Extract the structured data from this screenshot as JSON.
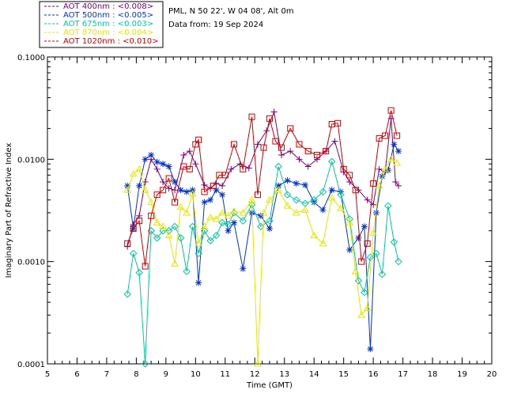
{
  "chart_data": {
    "type": "line",
    "title": "",
    "site": "PML, N 50 22', W 04 08', Alt 0m",
    "date_text": "Data from: 19 Sep 2024",
    "xlabel": "Time (GMT)",
    "ylabel": "Imaginary Part of Refractive Index",
    "xlim": [
      5,
      20
    ],
    "ylim": [
      0.0001,
      0.1
    ],
    "yscale": "log",
    "x_ticks": [
      "5",
      "6",
      "7",
      "8",
      "9",
      "10",
      "11",
      "12",
      "13",
      "14",
      "15",
      "16",
      "17",
      "18",
      "19",
      "20"
    ],
    "y_ticks": [
      {
        "value": 0.1,
        "label": "0.1000"
      },
      {
        "value": 0.01,
        "label": "0.0100"
      },
      {
        "value": 0.001,
        "label": "0.0010"
      },
      {
        "value": 0.0001,
        "label": "0.0001"
      }
    ],
    "series": [
      {
        "name": "AOT  400nm",
        "value_text": "<0.008>",
        "legend": "AOT  400nm : <0.008>",
        "color": "#7b007b",
        "marker": "plus",
        "x": [
          7.7,
          7.9,
          8.1,
          8.3,
          8.5,
          8.7,
          8.9,
          9.1,
          9.3,
          9.6,
          9.8,
          10.0,
          10.3,
          10.5,
          10.7,
          10.9,
          11.2,
          11.5,
          11.8,
          12.1,
          12.4,
          12.65,
          12.9,
          13.2,
          13.5,
          13.8,
          14.1,
          14.4,
          14.7,
          15.0,
          15.2,
          15.5,
          15.8,
          16.0,
          16.2,
          16.4,
          16.6,
          16.75,
          16.85
        ],
        "y": [
          0.0014,
          0.0023,
          0.0028,
          0.006,
          0.01,
          0.008,
          0.006,
          0.0052,
          0.005,
          0.011,
          0.012,
          0.009,
          0.0056,
          0.0052,
          0.0058,
          0.0055,
          0.008,
          0.009,
          0.0082,
          0.014,
          0.019,
          0.029,
          0.011,
          0.012,
          0.01,
          0.0085,
          0.01,
          0.012,
          0.015,
          0.0075,
          0.006,
          0.005,
          0.004,
          0.0036,
          0.008,
          0.0075,
          0.025,
          0.006,
          0.0055
        ]
      },
      {
        "name": "AOT  500nm",
        "value_text": "<0.005>",
        "legend": "AOT  500nm : <0.005>",
        "color": "#0033cc",
        "marker": "asterisk",
        "x": [
          7.7,
          7.9,
          8.1,
          8.3,
          8.5,
          8.7,
          8.9,
          9.1,
          9.3,
          9.5,
          9.7,
          9.9,
          10.1,
          10.3,
          10.5,
          10.7,
          10.9,
          11.1,
          11.3,
          11.6,
          11.9,
          12.2,
          12.5,
          12.8,
          13.1,
          13.4,
          13.7,
          14.0,
          14.3,
          14.6,
          14.9,
          15.2,
          15.5,
          15.7,
          15.9,
          16.1,
          16.3,
          16.5,
          16.7,
          16.85
        ],
        "y": [
          0.0055,
          0.0021,
          0.0055,
          0.01,
          0.011,
          0.0094,
          0.009,
          0.0085,
          0.006,
          0.005,
          0.0048,
          0.005,
          0.00062,
          0.0038,
          0.004,
          0.005,
          0.0045,
          0.002,
          0.0024,
          0.00085,
          0.003,
          0.0028,
          0.0021,
          0.0055,
          0.0062,
          0.0058,
          0.0056,
          0.0038,
          0.0032,
          0.005,
          0.0048,
          0.0013,
          0.0017,
          0.0022,
          0.00014,
          0.003,
          0.0068,
          0.0078,
          0.014,
          0.012
        ]
      },
      {
        "name": "AOT  675nm",
        "value_text": "<0.003>",
        "legend": "AOT  675nm : <0.003>",
        "color": "#00c8a0",
        "marker": "diamond",
        "x": [
          7.7,
          7.9,
          8.1,
          8.3,
          8.5,
          8.7,
          8.9,
          9.1,
          9.3,
          9.5,
          9.7,
          9.9,
          10.1,
          10.3,
          10.5,
          10.7,
          10.9,
          11.1,
          11.3,
          11.6,
          11.9,
          12.2,
          12.5,
          12.8,
          13.1,
          13.4,
          13.7,
          14.0,
          14.3,
          14.6,
          14.9,
          15.2,
          15.5,
          15.7,
          15.9,
          16.1,
          16.3,
          16.5,
          16.7,
          16.85
        ],
        "y": [
          0.00048,
          0.0012,
          0.00078,
          0.0001,
          0.002,
          0.0017,
          0.002,
          0.002,
          0.0022,
          0.0017,
          0.0008,
          0.0022,
          0.0012,
          0.002,
          0.0016,
          0.0018,
          0.0024,
          0.0023,
          0.003,
          0.0025,
          0.0036,
          0.0022,
          0.0025,
          0.0085,
          0.0045,
          0.004,
          0.0037,
          0.004,
          0.0048,
          0.0095,
          0.0045,
          0.0026,
          0.00065,
          0.0005,
          0.0011,
          0.0012,
          0.00075,
          0.0035,
          0.00155,
          0.001
        ]
      },
      {
        "name": "AOT  870nm",
        "value_text": "<0.004>",
        "legend": "AOT  870nm : <0.004>",
        "color": "#e6e600",
        "marker": "triangle",
        "x": [
          7.7,
          7.9,
          8.1,
          8.3,
          8.5,
          8.7,
          8.9,
          9.1,
          9.3,
          9.5,
          9.7,
          9.9,
          10.1,
          10.3,
          10.5,
          10.7,
          10.9,
          11.1,
          11.3,
          11.6,
          11.9,
          12.1,
          12.3,
          12.5,
          12.8,
          13.1,
          13.4,
          13.7,
          14.0,
          14.3,
          14.6,
          14.9,
          15.2,
          15.4,
          15.6,
          15.8,
          16.0,
          16.2,
          16.4,
          16.6,
          16.8
        ],
        "y": [
          0.005,
          0.0072,
          0.008,
          0.005,
          0.0038,
          0.0024,
          0.0022,
          0.0018,
          0.00095,
          0.0034,
          0.003,
          0.0046,
          0.0015,
          0.0022,
          0.0027,
          0.0026,
          0.003,
          0.0028,
          0.0031,
          0.003,
          0.004,
          0.0001,
          0.003,
          0.004,
          0.005,
          0.0035,
          0.003,
          0.0032,
          0.0018,
          0.0015,
          0.0042,
          0.0033,
          0.0024,
          0.0008,
          0.0003,
          0.00035,
          0.0019,
          0.0055,
          0.008,
          0.01,
          0.0092
        ]
      },
      {
        "name": "AOT 1020nm",
        "value_text": "<0.010>",
        "legend": "AOT 1020nm : <0.010>",
        "color": "#cc0000",
        "marker": "square",
        "x": [
          7.7,
          7.9,
          8.1,
          8.3,
          8.5,
          8.7,
          8.9,
          9.1,
          9.3,
          9.6,
          9.8,
          10.0,
          10.1,
          10.3,
          10.6,
          10.8,
          11.0,
          11.3,
          11.6,
          11.9,
          12.1,
          12.3,
          12.5,
          12.7,
          12.9,
          13.2,
          13.5,
          13.8,
          14.1,
          14.4,
          14.6,
          14.8,
          15.0,
          15.2,
          15.4,
          15.6,
          15.8,
          16.0,
          16.2,
          16.4,
          16.6,
          16.8
        ],
        "y": [
          0.0015,
          0.0021,
          0.0025,
          0.0009,
          0.0028,
          0.0045,
          0.005,
          0.0065,
          0.0038,
          0.0085,
          0.008,
          0.014,
          0.0155,
          0.0048,
          0.0055,
          0.007,
          0.007,
          0.014,
          0.008,
          0.026,
          0.0045,
          0.013,
          0.025,
          0.015,
          0.013,
          0.02,
          0.014,
          0.012,
          0.011,
          0.012,
          0.022,
          0.0225,
          0.008,
          0.007,
          0.005,
          0.001,
          0.0015,
          0.0058,
          0.016,
          0.017,
          0.03,
          0.017
        ]
      }
    ]
  }
}
